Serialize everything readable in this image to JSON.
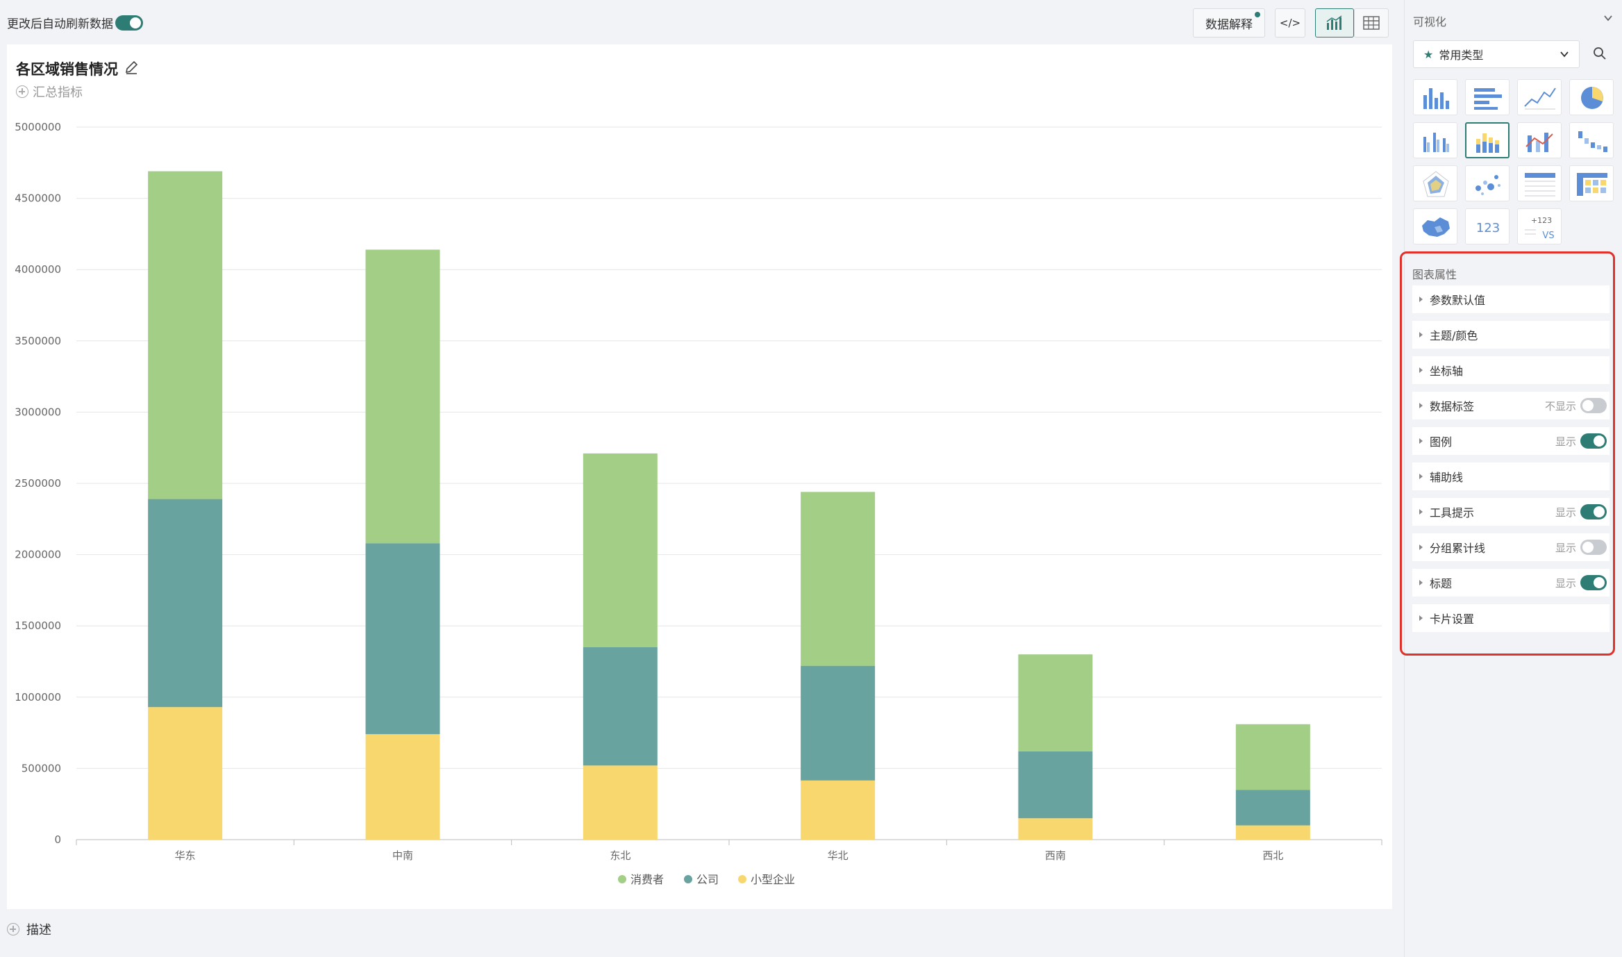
{
  "toolbar": {
    "auto_refresh_label": "更改后自动刷新数据",
    "auto_refresh_on": true,
    "data_explain_label": "数据解释",
    "code_icon_text": "</>",
    "chart_view_icon": "bar-chart-icon",
    "table_view_icon": "table-icon"
  },
  "card": {
    "title": "各区域销售情况",
    "add_metric_label": "汇总指标",
    "describe_label": "描述"
  },
  "chart_data": {
    "type": "bar",
    "stacked": true,
    "categories": [
      "华东",
      "中南",
      "东北",
      "华北",
      "西南",
      "西北"
    ],
    "series": [
      {
        "name": "小型企业",
        "color": "#f8d86e",
        "values": [
          930000,
          740000,
          520000,
          415000,
          150000,
          100000
        ]
      },
      {
        "name": "公司",
        "color": "#68a39f",
        "values": [
          1460000,
          1340000,
          830000,
          805000,
          470000,
          250000
        ]
      },
      {
        "name": "消费者",
        "color": "#a2ce85",
        "values": [
          2300000,
          2060000,
          1360000,
          1220000,
          680000,
          460000
        ]
      }
    ],
    "ylim": [
      0,
      5000000
    ],
    "yticks": [
      "0",
      "500000",
      "1000000",
      "1500000",
      "2000000",
      "2500000",
      "3000000",
      "3500000",
      "4000000",
      "4500000",
      "5000000"
    ],
    "legend_order": [
      "消费者",
      "公司",
      "小型企业"
    ],
    "legend_position": "bottom-center",
    "grid": true
  },
  "panel": {
    "viz_header": "可视化",
    "type_select_label": "常用类型",
    "chart_types": [
      {
        "icon": "column-chart-icon"
      },
      {
        "icon": "bar-chart-horizontal-icon"
      },
      {
        "icon": "line-chart-icon"
      },
      {
        "icon": "pie-chart-icon"
      },
      {
        "icon": "grouped-column-icon"
      },
      {
        "icon": "stacked-column-icon",
        "selected": true
      },
      {
        "icon": "combo-chart-icon"
      },
      {
        "icon": "waterfall-chart-icon"
      },
      {
        "icon": "radar-chart-icon"
      },
      {
        "icon": "scatter-chart-icon"
      },
      {
        "icon": "detail-table-icon"
      },
      {
        "icon": "cross-table-icon"
      },
      {
        "icon": "map-chart-icon"
      },
      {
        "icon": "kpi-card-icon",
        "text": "123"
      },
      {
        "icon": "comparison-card-icon",
        "text": "123",
        "sub": "VS"
      }
    ],
    "props_header": "图表属性",
    "props": [
      {
        "label": "参数默认值"
      },
      {
        "label": "主题/颜色"
      },
      {
        "label": "坐标轴"
      },
      {
        "label": "数据标签",
        "status": "不显示",
        "toggle": false
      },
      {
        "label": "图例",
        "status": "显示",
        "toggle": true
      },
      {
        "label": "辅助线"
      },
      {
        "label": "工具提示",
        "status": "显示",
        "toggle": true
      },
      {
        "label": "分组累计线",
        "status": "显示",
        "toggle": false
      },
      {
        "label": "标题",
        "status": "显示",
        "toggle": true
      },
      {
        "label": "卡片设置"
      }
    ]
  },
  "colors": {
    "accent": "#2e7d75",
    "highlight_box": "#e0312b"
  }
}
